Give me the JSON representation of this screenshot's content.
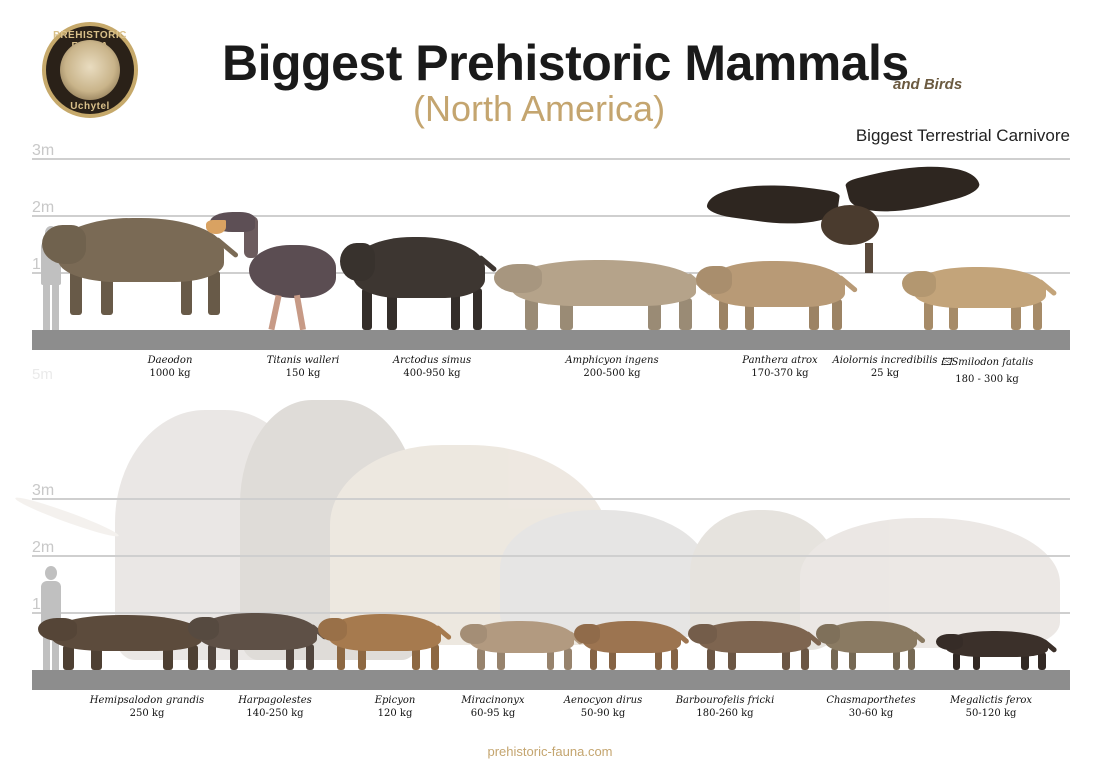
{
  "logo": {
    "top_text": "PREHISTORIC FAUNA",
    "bottom_text": "Uchytel"
  },
  "header": {
    "title": "Biggest Prehistoric Mammals",
    "addendum": "and Birds",
    "subtitle": "(North America)",
    "corner_label": "Biggest Terrestrial Carnivore"
  },
  "scale": {
    "top": [
      "3m",
      "2m",
      "1m"
    ],
    "faded": "5m",
    "bottom": [
      "3m",
      "2m",
      "1m"
    ]
  },
  "top_row": [
    {
      "name": "Daeodon",
      "weight": "1000 kg",
      "color": "#7a6a55"
    },
    {
      "name": "Titanis walleri",
      "weight": "150 kg",
      "color": "#5b4d52"
    },
    {
      "name": "Arctodus simus",
      "weight": "400-950 kg",
      "color": "#3d3631"
    },
    {
      "name": "Amphicyon ingens",
      "weight": "200-500 kg",
      "color": "#b5a38a"
    },
    {
      "name": "Panthera atrox",
      "weight": "170-370 kg",
      "color": "#b89a76"
    },
    {
      "name": "Aiolornis incredibilis",
      "weight": "25 kg",
      "color": "#2e2620"
    },
    {
      "name": "🖾Smilodon fatalis",
      "weight": "180 - 300 kg",
      "color": "#c3a47a"
    }
  ],
  "bottom_row": [
    {
      "name": "Hemipsalodon grandis",
      "weight": "250 kg",
      "color": "#5c4b3c"
    },
    {
      "name": "Harpagolestes",
      "weight": "140-250 kg",
      "color": "#5e5046"
    },
    {
      "name": "Epicyon",
      "weight": "120 kg",
      "color": "#a67a4e"
    },
    {
      "name": "Miracinonyx",
      "weight": "60-95 kg",
      "color": "#b29a80"
    },
    {
      "name": "Aenocyon dirus",
      "weight": "50-90 kg",
      "color": "#9c7450"
    },
    {
      "name": "Barbourofelis fricki",
      "weight": "180-260 kg",
      "color": "#7e6550"
    },
    {
      "name": "Chasmaporthetes",
      "weight": "30-60 kg",
      "color": "#8a7a62"
    },
    {
      "name": "Megalictis ferox",
      "weight": "50-120 kg",
      "color": "#3b302a"
    }
  ],
  "background_giants": {
    "color": "#9b8f82"
  },
  "footer": {
    "url": "prehistoric-fauna.com"
  }
}
